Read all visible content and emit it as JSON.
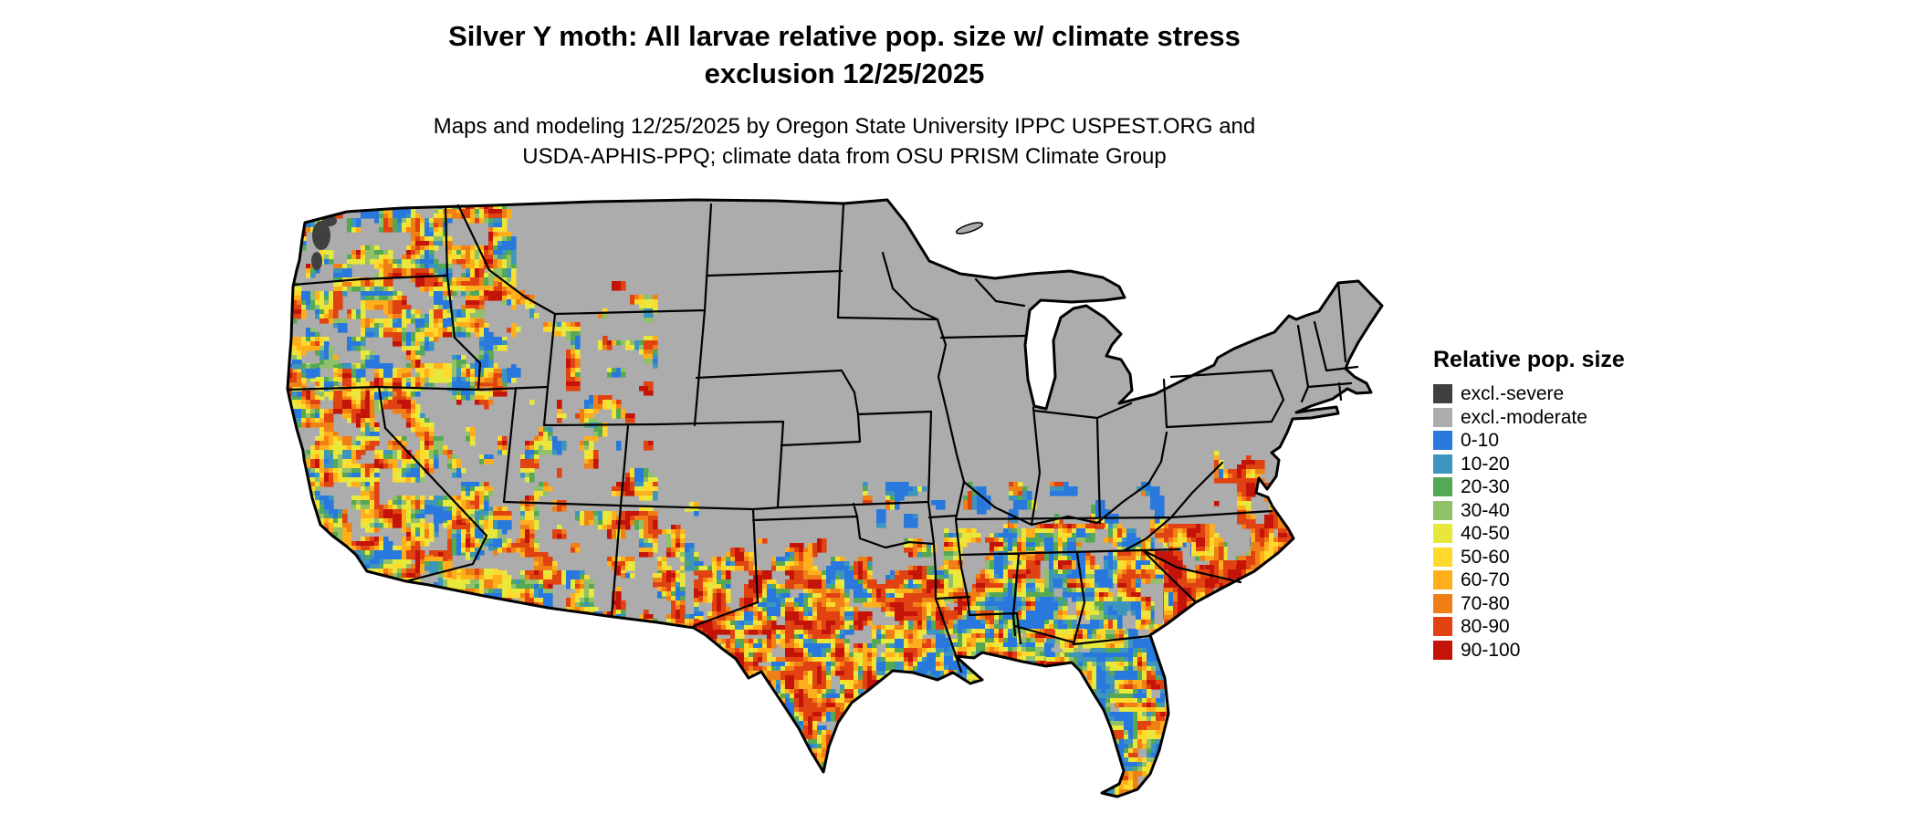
{
  "title": {
    "line1": "Silver Y moth: All larvae relative pop. size w/ climate stress",
    "line2": "exclusion 12/25/2025"
  },
  "subtitle": {
    "line1": "Maps and modeling 12/25/2025 by Oregon State University IPPC USPEST.ORG and",
    "line2": "USDA-APHIS-PPQ; climate data from OSU PRISM Climate Group"
  },
  "legend": {
    "title": "Relative pop. size",
    "items": [
      {
        "label": "excl.-severe",
        "color": "#404040"
      },
      {
        "label": "excl.-moderate",
        "color": "#ACACAC"
      },
      {
        "label": "0-10",
        "color": "#2878DD"
      },
      {
        "label": "10-20",
        "color": "#3D95BE"
      },
      {
        "label": "20-30",
        "color": "#55A854"
      },
      {
        "label": "30-40",
        "color": "#90C06A"
      },
      {
        "label": "40-50",
        "color": "#E8E83C"
      },
      {
        "label": "50-60",
        "color": "#FFD92B"
      },
      {
        "label": "60-70",
        "color": "#FFAF1C"
      },
      {
        "label": "70-80",
        "color": "#F08016"
      },
      {
        "label": "80-90",
        "color": "#E04311"
      },
      {
        "label": "90-100",
        "color": "#C41309"
      }
    ]
  },
  "map": {
    "base_color": "#ACACAC",
    "outline_color": "#000000",
    "background": "#FFFFFF"
  }
}
